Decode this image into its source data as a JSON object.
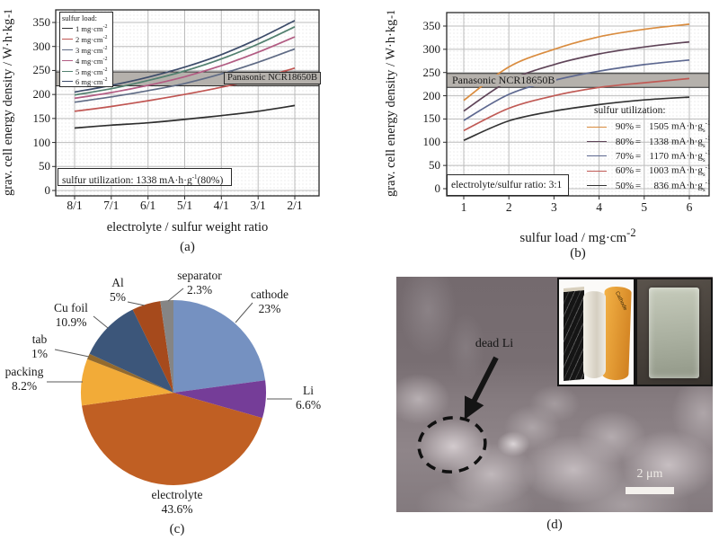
{
  "chart_data": [
    {
      "panel_label": "(a)",
      "type": "line",
      "xlabel": "electrolyte / sulfur weight ratio",
      "ylabel": {
        "main": "grav. cell energy density / W·h·kg",
        "sup": "-1"
      },
      "categories": [
        "8/1",
        "7/1",
        "6/1",
        "5/1",
        "4/1",
        "3/1",
        "2/1"
      ],
      "ylim": [
        0,
        350
      ],
      "yticks": [
        0,
        50,
        100,
        150,
        200,
        250,
        300,
        350
      ],
      "grid": "on",
      "legend_title": "sulfur load:",
      "legend_position": "top-left",
      "series": [
        {
          "label": "1 mg·cm",
          "label_sup": "-2",
          "color": "#2e2e2e",
          "values": [
            130,
            136,
            141,
            148,
            156,
            165,
            177
          ]
        },
        {
          "label": "2 mg·cm",
          "label_sup": "-2",
          "color": "#c05552",
          "values": [
            165,
            175,
            187,
            200,
            215,
            233,
            255
          ]
        },
        {
          "label": "3 mg·cm",
          "label_sup": "-2",
          "color": "#5f6b85",
          "values": [
            184,
            195,
            208,
            223,
            243,
            267,
            295
          ]
        },
        {
          "label": "4 mg·cm",
          "label_sup": "-2",
          "color": "#b25c83",
          "values": [
            192,
            204,
            219,
            237,
            260,
            288,
            320
          ]
        },
        {
          "label": "5 mg·cm",
          "label_sup": "-2",
          "color": "#52806f",
          "values": [
            199,
            212,
            229,
            249,
            274,
            305,
            341
          ]
        },
        {
          "label": "6 mg·cm",
          "label_sup": "-2",
          "color": "#3d4c6a",
          "values": [
            205,
            219,
            236,
            257,
            283,
            316,
            354
          ]
        }
      ],
      "band": {
        "label": "Panasonic NCR18650B",
        "value_from": 218,
        "value_to": 247,
        "color": "#b5b1ac"
      },
      "annotation": {
        "pre": "sulfur utilization: 1338 mA·h·g",
        "sup": "-1",
        "post": "(80%)"
      }
    },
    {
      "panel_label": "(b)",
      "type": "line",
      "xlabel": {
        "main": "sulfur load / mg·cm",
        "sup": "-2"
      },
      "ylabel": {
        "main": "grav. cell energy density / W·h·kg",
        "sup": "-1"
      },
      "x": [
        1,
        2,
        3,
        4,
        5,
        6
      ],
      "ylim": [
        0,
        350
      ],
      "yticks": [
        0,
        50,
        100,
        150,
        200,
        250,
        300,
        350
      ],
      "grid": "on",
      "legend_title": "sulfur utilization:",
      "legend_equals": "=",
      "legend_position": "bottom-right",
      "series": [
        {
          "pct": "90%",
          "capacity": "1505",
          "unit": "mA·h·g",
          "unit_sub": "s",
          "unit_sup": "-1",
          "color": "#d98c3f",
          "values": [
            190,
            262,
            300,
            327,
            343,
            354
          ]
        },
        {
          "pct": "80%",
          "capacity": "1338",
          "unit": "mA·h·g",
          "unit_sub": "s",
          "unit_sup": "-1",
          "color": "#5f4458",
          "values": [
            167,
            232,
            267,
            290,
            305,
            316
          ]
        },
        {
          "pct": "70%",
          "capacity": "1170",
          "unit": "mA·h·g",
          "unit_sub": "s",
          "unit_sup": "-1",
          "color": "#5d6890",
          "values": [
            147,
            203,
            233,
            253,
            267,
            277
          ]
        },
        {
          "pct": "60%",
          "capacity": "1003",
          "unit": "mA·h·g",
          "unit_sub": "s",
          "unit_sup": "-1",
          "color": "#c05a55",
          "values": [
            125,
            173,
            200,
            218,
            228,
            237
          ]
        },
        {
          "pct": "50%",
          "capacity": "836",
          "unit": "mA·h·g",
          "unit_sub": "s",
          "unit_sup": "-1",
          "color": "#333333",
          "values": [
            104,
            146,
            167,
            181,
            191,
            197
          ]
        }
      ],
      "band": {
        "label": "Panasonic NCR18650B",
        "value_from": 218,
        "value_to": 248,
        "color": "#b5b1ac"
      },
      "annotation": {
        "text": "electrolyte/sulfur ratio: 3:1"
      }
    },
    {
      "panel_label": "(c)",
      "type": "pie",
      "slices": [
        {
          "label": "cathode",
          "pct_label": "23%",
          "value": 23,
          "color": "#7591c1"
        },
        {
          "label": "Li",
          "pct_label": "6.6%",
          "value": 6.6,
          "color": "#753d98"
        },
        {
          "label": "electrolyte",
          "pct_label": "43.6%",
          "value": 43.6,
          "color": "#c05f23"
        },
        {
          "label": "packing",
          "pct_label": "8.2%",
          "value": 8.2,
          "color": "#f2ab38"
        },
        {
          "label": "tab",
          "pct_label": "1%",
          "value": 1,
          "color": "#936a2e"
        },
        {
          "label": "Cu foil",
          "pct_label": "10.9%",
          "value": 10.9,
          "color": "#3c567a"
        },
        {
          "label": "Al",
          "pct_label": "5%",
          "value": 5,
          "color": "#a64a1c"
        },
        {
          "label": "separator",
          "pct_label": "2.3%",
          "value": 2.3,
          "color": "#858585"
        }
      ]
    }
  ],
  "panel_d": {
    "panel_label": "(d)",
    "dead_li": "dead Li",
    "scale_bar": "2 μm",
    "inset_cathode_label": "Cathode"
  }
}
